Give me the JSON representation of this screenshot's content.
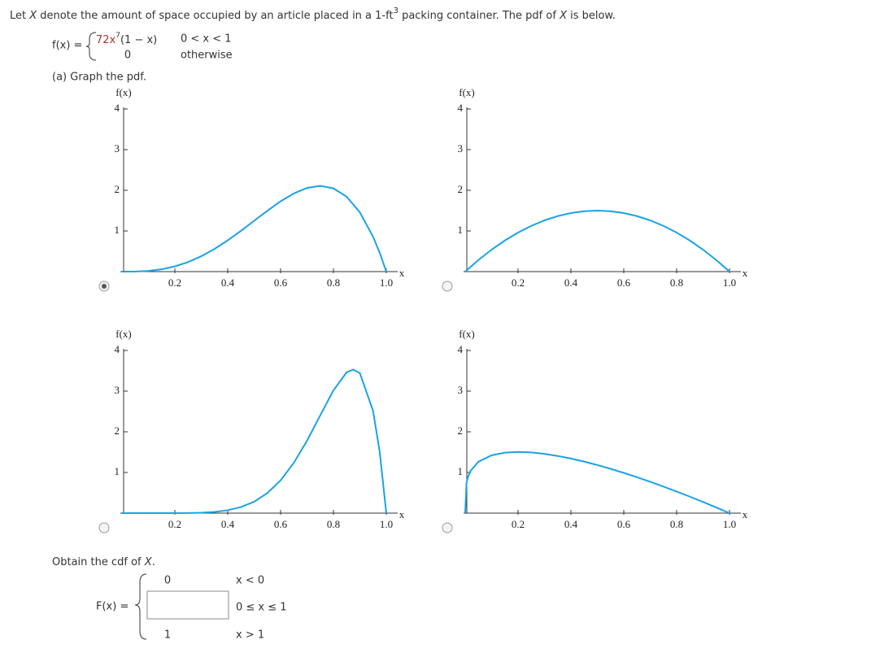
{
  "intro": {
    "t1": "Let ",
    "var1": "X",
    "t2": " denote the amount of space occupied by an article placed in a 1-ft",
    "sup": "3",
    "t3": " packing container. The pdf of ",
    "var2": "X",
    "t4": " is below."
  },
  "pdf": {
    "lhs": "f(x) = ",
    "case1_base": "72x",
    "case1_exp": "7",
    "case1_rest": "(1 − x)",
    "case1_cond": "0 < x < 1",
    "case2_expr": "0",
    "case2_cond": "otherwise"
  },
  "part_a": "(a) Graph the pdf.",
  "chart_data": [
    {
      "type": "line",
      "y_label": "f(x)",
      "x_label": "x",
      "xlim": [
        0,
        1
      ],
      "ylim": [
        0,
        4
      ],
      "xticks": [
        0.2,
        0.4,
        0.6,
        0.8,
        {
          "value": 1,
          "label": "1.0"
        }
      ],
      "yticks": [
        1,
        2,
        3,
        4
      ],
      "color": "#1aa3e6",
      "selected": true,
      "x": [
        0,
        0.05,
        0.1,
        0.15,
        0.2,
        0.25,
        0.3,
        0.35,
        0.4,
        0.45,
        0.5,
        0.55,
        0.6,
        0.65,
        0.7,
        0.75,
        0.8,
        0.85,
        0.9,
        0.95,
        0.975,
        1
      ],
      "values": [
        0,
        0.002,
        0.018,
        0.057,
        0.128,
        0.234,
        0.378,
        0.557,
        0.768,
        1.002,
        1.25,
        1.497,
        1.728,
        1.922,
        2.058,
        2.109,
        2.048,
        1.842,
        1.458,
        0.857,
        0.463,
        0
      ]
    },
    {
      "type": "line",
      "y_label": "f(x)",
      "x_label": "x",
      "xlim": [
        0,
        1
      ],
      "ylim": [
        0,
        4
      ],
      "xticks": [
        0.2,
        0.4,
        0.6,
        0.8,
        {
          "value": 1,
          "label": "1.0"
        }
      ],
      "yticks": [
        1,
        2,
        3,
        4
      ],
      "color": "#1aa3e6",
      "selected": false,
      "x": [
        0,
        0.05,
        0.1,
        0.15,
        0.2,
        0.25,
        0.3,
        0.35,
        0.4,
        0.45,
        0.5,
        0.55,
        0.6,
        0.65,
        0.7,
        0.75,
        0.8,
        0.85,
        0.9,
        0.95,
        1
      ],
      "values": [
        0,
        0.285,
        0.54,
        0.765,
        0.96,
        1.125,
        1.26,
        1.365,
        1.44,
        1.485,
        1.5,
        1.485,
        1.44,
        1.365,
        1.26,
        1.125,
        0.96,
        0.765,
        0.54,
        0.285,
        0
      ]
    },
    {
      "type": "line",
      "y_label": "f(x)",
      "x_label": "x",
      "xlim": [
        0,
        1
      ],
      "ylim": [
        0,
        4
      ],
      "xticks": [
        0.2,
        0.4,
        0.6,
        0.8,
        {
          "value": 1,
          "label": "1.0"
        }
      ],
      "yticks": [
        1,
        2,
        3,
        4
      ],
      "color": "#1aa3e6",
      "selected": false,
      "x": [
        0,
        0.1,
        0.2,
        0.25,
        0.3,
        0.35,
        0.4,
        0.45,
        0.5,
        0.55,
        0.6,
        0.65,
        0.7,
        0.75,
        0.8,
        0.85,
        0.875,
        0.9,
        0.95,
        0.975,
        1
      ],
      "values": [
        0,
        0,
        0.001,
        0.003,
        0.011,
        0.03,
        0.071,
        0.148,
        0.281,
        0.493,
        0.806,
        1.235,
        1.779,
        2.403,
        3.02,
        3.463,
        3.53,
        3.444,
        2.514,
        1.508,
        0
      ]
    },
    {
      "type": "line",
      "y_label": "f(x)",
      "x_label": "x",
      "xlim": [
        0,
        1
      ],
      "ylim": [
        0,
        4
      ],
      "xticks": [
        0.2,
        0.4,
        0.6,
        0.8,
        {
          "value": 1,
          "label": "1.0"
        }
      ],
      "yticks": [
        1,
        2,
        3,
        4
      ],
      "color": "#1aa3e6",
      "selected": false,
      "x": [
        0,
        0.005,
        0.01,
        0.02,
        0.05,
        0.1,
        0.15,
        0.2,
        0.25,
        0.3,
        0.35,
        0.4,
        0.45,
        0.5,
        0.55,
        0.6,
        0.65,
        0.7,
        0.75,
        0.8,
        0.85,
        0.9,
        0.95,
        1
      ],
      "values": [
        0,
        0.74,
        0.88,
        1.036,
        1.264,
        1.423,
        1.488,
        1.505,
        1.492,
        1.457,
        1.406,
        1.342,
        1.267,
        1.183,
        1.09,
        0.99,
        0.884,
        0.772,
        0.654,
        0.532,
        0.405,
        0.274,
        0.139,
        0
      ]
    }
  ],
  "part_b": {
    "t1": "Obtain the cdf of ",
    "var": "X",
    "t2": ".",
    "lhs": "F(x) = ",
    "case1_expr": "0",
    "case1_cond": "x < 0",
    "case2_cond": "0 ≤ x ≤ 1",
    "case3_expr": "1",
    "case3_cond": "x > 1"
  }
}
